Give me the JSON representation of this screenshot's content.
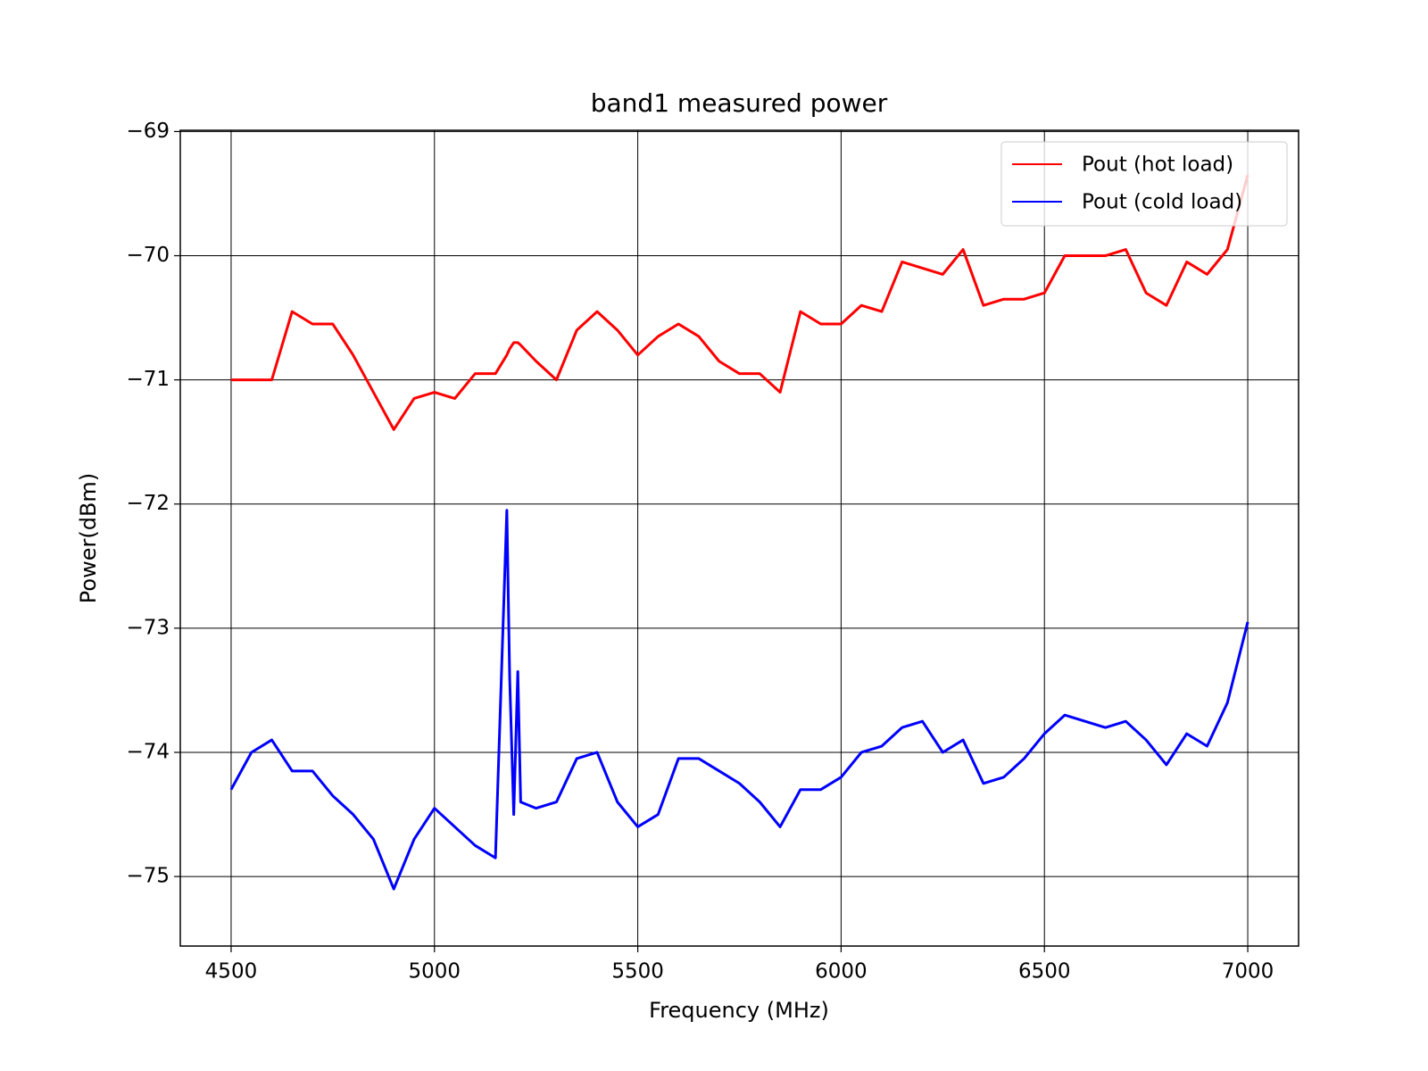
{
  "chart_data": {
    "type": "line",
    "title": "band1 measured power",
    "x_label": "Frequency (MHz)",
    "y_label": "Power(dBm)",
    "x": [
      4500,
      4550,
      4600,
      4650,
      4700,
      4750,
      4800,
      4850,
      4900,
      4950,
      5000,
      5050,
      5100,
      5150,
      5178,
      5185,
      5195,
      5205,
      5212,
      5250,
      5300,
      5350,
      5400,
      5450,
      5500,
      5550,
      5600,
      5650,
      5700,
      5750,
      5800,
      5850,
      5900,
      5950,
      6000,
      6050,
      6100,
      6150,
      6200,
      6250,
      6300,
      6350,
      6400,
      6450,
      6500,
      6550,
      6600,
      6650,
      6700,
      6750,
      6800,
      6850,
      6900,
      6950,
      7000
    ],
    "series": [
      {
        "name": "Pout (hot load)",
        "color": "#ff0000",
        "values": [
          -71.0,
          -71.0,
          -71.0,
          -70.45,
          -70.55,
          -70.55,
          -70.8,
          -71.1,
          -71.4,
          -71.15,
          -71.1,
          -71.15,
          -70.95,
          -70.95,
          -70.8,
          -70.75,
          -70.7,
          -70.7,
          -70.72,
          -70.85,
          -71.0,
          -70.6,
          -70.45,
          -70.6,
          -70.8,
          -70.65,
          -70.55,
          -70.65,
          -70.85,
          -70.95,
          -70.95,
          -71.1,
          -70.45,
          -70.55,
          -70.55,
          -70.4,
          -70.45,
          -70.05,
          -70.1,
          -70.15,
          -69.95,
          -70.4,
          -70.35,
          -70.35,
          -70.3,
          -70.0,
          -70.0,
          -70.0,
          -69.95,
          -70.3,
          -70.4,
          -70.05,
          -70.15,
          -69.95,
          -69.35
        ]
      },
      {
        "name": "Pout (cold load)",
        "color": "#0000ff",
        "values": [
          -74.3,
          -74.0,
          -73.9,
          -74.15,
          -74.15,
          -74.35,
          -74.5,
          -74.7,
          -75.1,
          -74.7,
          -74.45,
          -74.6,
          -74.75,
          -74.85,
          -72.05,
          -73.4,
          -74.5,
          -73.35,
          -74.4,
          -74.45,
          -74.4,
          -74.05,
          -74.0,
          -74.4,
          -74.6,
          -74.5,
          -74.05,
          -74.05,
          -74.15,
          -74.25,
          -74.4,
          -74.6,
          -74.3,
          -74.3,
          -74.2,
          -74.0,
          -73.95,
          -73.8,
          -73.75,
          -74.0,
          -73.9,
          -74.25,
          -74.2,
          -74.05,
          -73.85,
          -73.7,
          -73.75,
          -73.8,
          -73.75,
          -73.9,
          -74.1,
          -73.85,
          -73.95,
          -73.6,
          -72.95
        ]
      }
    ],
    "xlim": [
      4375,
      7125
    ],
    "ylim": [
      -75.56,
      -68.99
    ],
    "xticks": [
      4500,
      5000,
      5500,
      6000,
      6500,
      7000
    ],
    "yticks": [
      {
        "value": -69,
        "label": "−69"
      },
      {
        "value": -70,
        "label": "−70"
      },
      {
        "value": -71,
        "label": "−71"
      },
      {
        "value": -72,
        "label": "−72"
      },
      {
        "value": -73,
        "label": "−73"
      },
      {
        "value": -74,
        "label": "−74"
      },
      {
        "value": -75,
        "label": "−75"
      }
    ],
    "grid": true,
    "legend": "upper-right"
  }
}
